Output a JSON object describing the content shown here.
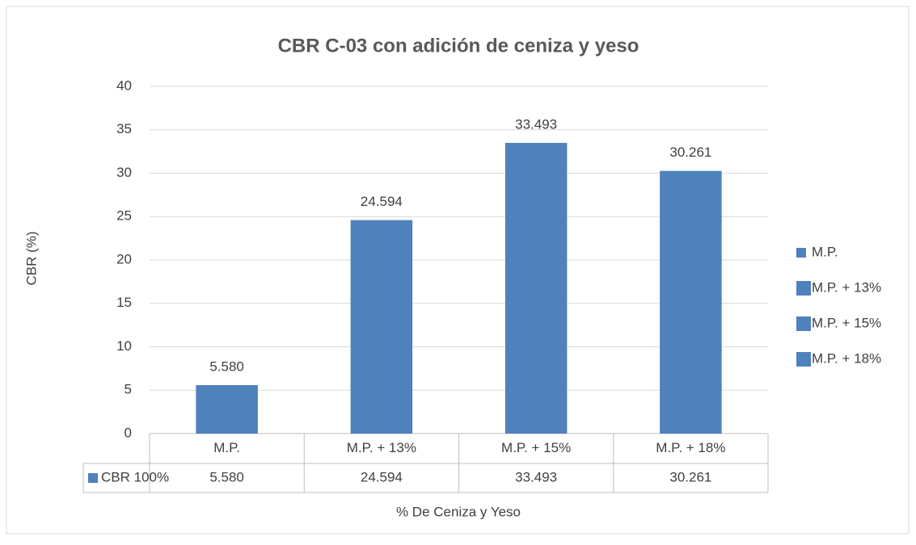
{
  "chart_data": {
    "type": "bar",
    "title": "CBR C-03 con adición de ceniza y yeso",
    "y_label": "CBR (%)",
    "x_label": "% De Ceniza y Yeso",
    "categories": [
      "M.P.",
      "M.P. + 13%",
      "M.P. + 15%",
      "M.P. + 18%"
    ],
    "series": [
      {
        "name": "CBR 100%",
        "color": "#4f81bd",
        "values": [
          5.58,
          24.594,
          33.493,
          30.261
        ],
        "value_labels": [
          "5.580",
          "24.594",
          "33.493",
          "30.261"
        ]
      }
    ],
    "ylim": [
      0,
      40
    ],
    "yticks": [
      0,
      5,
      10,
      15,
      20,
      25,
      30,
      35,
      40
    ],
    "grid": true,
    "legend": "right"
  }
}
